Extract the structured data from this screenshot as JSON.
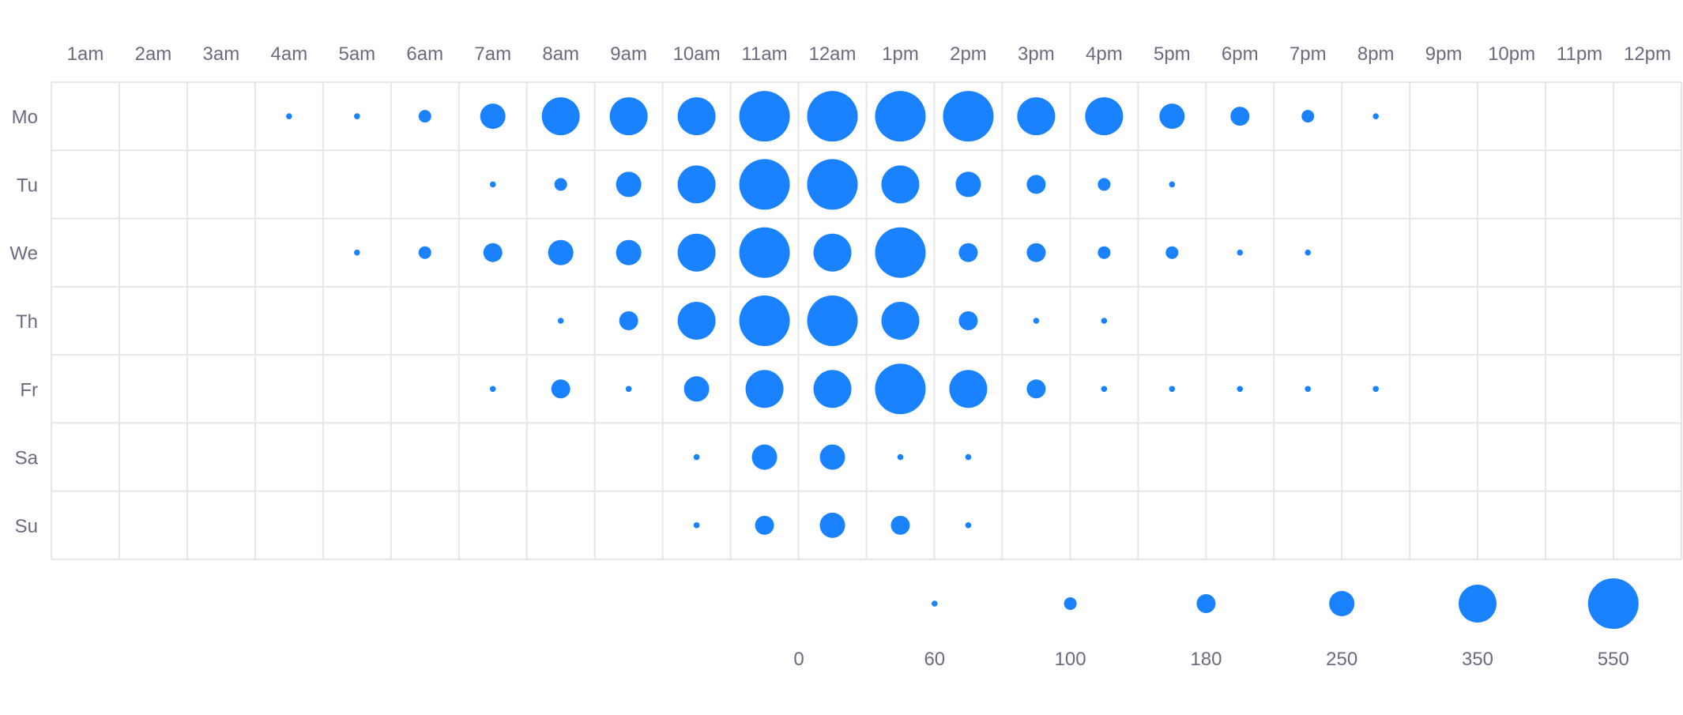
{
  "chart_data": {
    "type": "scatter",
    "subtype": "punch-card",
    "x_categories": [
      "1am",
      "2am",
      "3am",
      "4am",
      "5am",
      "6am",
      "7am",
      "8am",
      "9am",
      "10am",
      "11am",
      "12am",
      "1pm",
      "2pm",
      "3pm",
      "4pm",
      "5pm",
      "6pm",
      "7pm",
      "8pm",
      "9pm",
      "10pm",
      "11pm",
      "12pm"
    ],
    "y_categories": [
      "Mo",
      "Tu",
      "We",
      "Th",
      "Fr",
      "Sa",
      "Su"
    ],
    "values": [
      [
        0,
        0,
        0,
        60,
        60,
        100,
        250,
        350,
        350,
        350,
        550,
        550,
        550,
        550,
        350,
        350,
        250,
        180,
        100,
        60,
        0,
        0,
        0,
        0
      ],
      [
        0,
        0,
        0,
        0,
        0,
        0,
        60,
        100,
        250,
        350,
        550,
        550,
        350,
        250,
        180,
        100,
        60,
        0,
        0,
        0,
        0,
        0,
        0,
        0
      ],
      [
        0,
        0,
        0,
        0,
        60,
        100,
        180,
        250,
        250,
        350,
        550,
        350,
        550,
        180,
        180,
        100,
        100,
        60,
        60,
        0,
        0,
        0,
        0,
        0
      ],
      [
        0,
        0,
        0,
        0,
        0,
        0,
        0,
        60,
        180,
        350,
        550,
        550,
        350,
        180,
        60,
        60,
        0,
        0,
        0,
        0,
        0,
        0,
        0,
        0
      ],
      [
        0,
        0,
        0,
        0,
        0,
        0,
        60,
        180,
        60,
        250,
        350,
        350,
        550,
        350,
        180,
        60,
        60,
        60,
        60,
        60,
        0,
        0,
        0,
        0
      ],
      [
        0,
        0,
        0,
        0,
        0,
        0,
        0,
        0,
        0,
        60,
        250,
        250,
        60,
        60,
        0,
        0,
        0,
        0,
        0,
        0,
        0,
        0,
        0,
        0
      ],
      [
        0,
        0,
        0,
        0,
        0,
        0,
        0,
        0,
        0,
        60,
        180,
        250,
        180,
        60,
        0,
        0,
        0,
        0,
        0,
        0,
        0,
        0,
        0,
        0
      ]
    ],
    "size_legend": [
      "0",
      "60",
      "100",
      "180",
      "250",
      "350",
      "550"
    ],
    "size_legend_values": [
      0,
      60,
      100,
      180,
      250,
      350,
      550
    ],
    "grid": true,
    "legend_placement": "bottom-right",
    "colors": {
      "dot": "#1a82ff",
      "grid": "#e6e6e6",
      "text": "#6b6b80"
    }
  }
}
